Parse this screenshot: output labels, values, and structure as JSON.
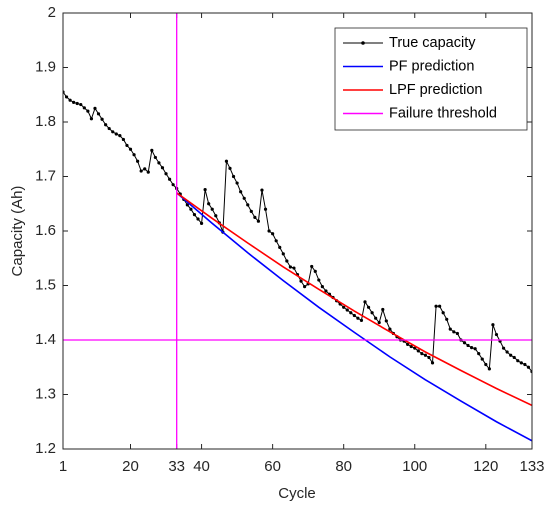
{
  "chart_data": {
    "type": "line",
    "xlabel": "Cycle",
    "ylabel": "Capacity (Ah)",
    "xlim": [
      1,
      133
    ],
    "xticks": [
      1,
      20,
      33,
      40,
      60,
      80,
      100,
      120,
      133
    ],
    "ylim": [
      1.2,
      2
    ],
    "yticks": [
      1.2,
      1.3,
      1.4,
      1.5,
      1.6,
      1.7,
      1.8,
      1.9,
      2
    ],
    "legend": "upper right",
    "series": [
      {
        "name": "True capacity",
        "color": "#000000",
        "markers": true,
        "x": [
          1,
          2,
          3,
          4,
          5,
          6,
          7,
          8,
          9,
          10,
          11,
          12,
          13,
          14,
          15,
          16,
          17,
          18,
          19,
          20,
          21,
          22,
          23,
          24,
          25,
          26,
          27,
          28,
          29,
          30,
          31,
          32,
          33,
          34,
          35,
          36,
          37,
          38,
          39,
          40,
          41,
          42,
          43,
          44,
          45,
          46,
          47,
          48,
          49,
          50,
          51,
          52,
          53,
          54,
          55,
          56,
          57,
          58,
          59,
          60,
          61,
          62,
          63,
          64,
          65,
          66,
          67,
          68,
          69,
          70,
          71,
          72,
          73,
          74,
          75,
          76,
          77,
          78,
          79,
          80,
          81,
          82,
          83,
          84,
          85,
          86,
          87,
          88,
          89,
          90,
          91,
          92,
          93,
          94,
          95,
          96,
          97,
          98,
          99,
          100,
          101,
          102,
          103,
          104,
          105,
          106,
          107,
          108,
          109,
          110,
          111,
          112,
          113,
          114,
          115,
          116,
          117,
          118,
          119,
          120,
          121,
          122,
          123,
          124,
          125,
          126,
          127,
          128,
          129,
          130,
          131,
          132,
          133
        ],
        "values": [
          1.855,
          1.846,
          1.84,
          1.836,
          1.834,
          1.832,
          1.826,
          1.82,
          1.806,
          1.825,
          1.815,
          1.805,
          1.795,
          1.788,
          1.782,
          1.778,
          1.775,
          1.768,
          1.757,
          1.75,
          1.74,
          1.728,
          1.71,
          1.714,
          1.708,
          1.748,
          1.735,
          1.725,
          1.716,
          1.705,
          1.695,
          1.685,
          1.678,
          1.668,
          1.658,
          1.648,
          1.64,
          1.63,
          1.622,
          1.614,
          1.676,
          1.65,
          1.64,
          1.628,
          1.615,
          1.598,
          1.728,
          1.715,
          1.7,
          1.688,
          1.672,
          1.66,
          1.648,
          1.636,
          1.625,
          1.618,
          1.675,
          1.64,
          1.6,
          1.595,
          1.582,
          1.57,
          1.558,
          1.545,
          1.534,
          1.532,
          1.52,
          1.508,
          1.498,
          1.503,
          1.535,
          1.526,
          1.51,
          1.498,
          1.49,
          1.484,
          1.478,
          1.472,
          1.466,
          1.46,
          1.455,
          1.45,
          1.445,
          1.44,
          1.436,
          1.47,
          1.46,
          1.45,
          1.44,
          1.432,
          1.456,
          1.435,
          1.42,
          1.412,
          1.406,
          1.4,
          1.398,
          1.392,
          1.388,
          1.385,
          1.38,
          1.375,
          1.372,
          1.368,
          1.358,
          1.462,
          1.462,
          1.45,
          1.438,
          1.42,
          1.415,
          1.412,
          1.4,
          1.395,
          1.39,
          1.386,
          1.384,
          1.375,
          1.365,
          1.355,
          1.347,
          1.428,
          1.41,
          1.398,
          1.385,
          1.378,
          1.372,
          1.368,
          1.362,
          1.358,
          1.355,
          1.35,
          1.342
        ]
      },
      {
        "name": "PF prediction",
        "color": "#0000ff",
        "x": [
          33,
          43,
          53,
          63,
          73,
          83,
          93,
          103,
          113,
          123,
          133
        ],
        "values": [
          1.67,
          1.614,
          1.56,
          1.509,
          1.46,
          1.414,
          1.369,
          1.327,
          1.288,
          1.25,
          1.215
        ]
      },
      {
        "name": "LPF prediction",
        "color": "#ff0000",
        "x": [
          33,
          43,
          53,
          63,
          73,
          83,
          93,
          103,
          113,
          123,
          133
        ],
        "values": [
          1.67,
          1.623,
          1.578,
          1.534,
          1.493,
          1.453,
          1.415,
          1.378,
          1.344,
          1.311,
          1.28
        ]
      },
      {
        "name": "Failure threshold",
        "color": "#ff00ff",
        "y": 1.4,
        "x": 33
      }
    ]
  }
}
